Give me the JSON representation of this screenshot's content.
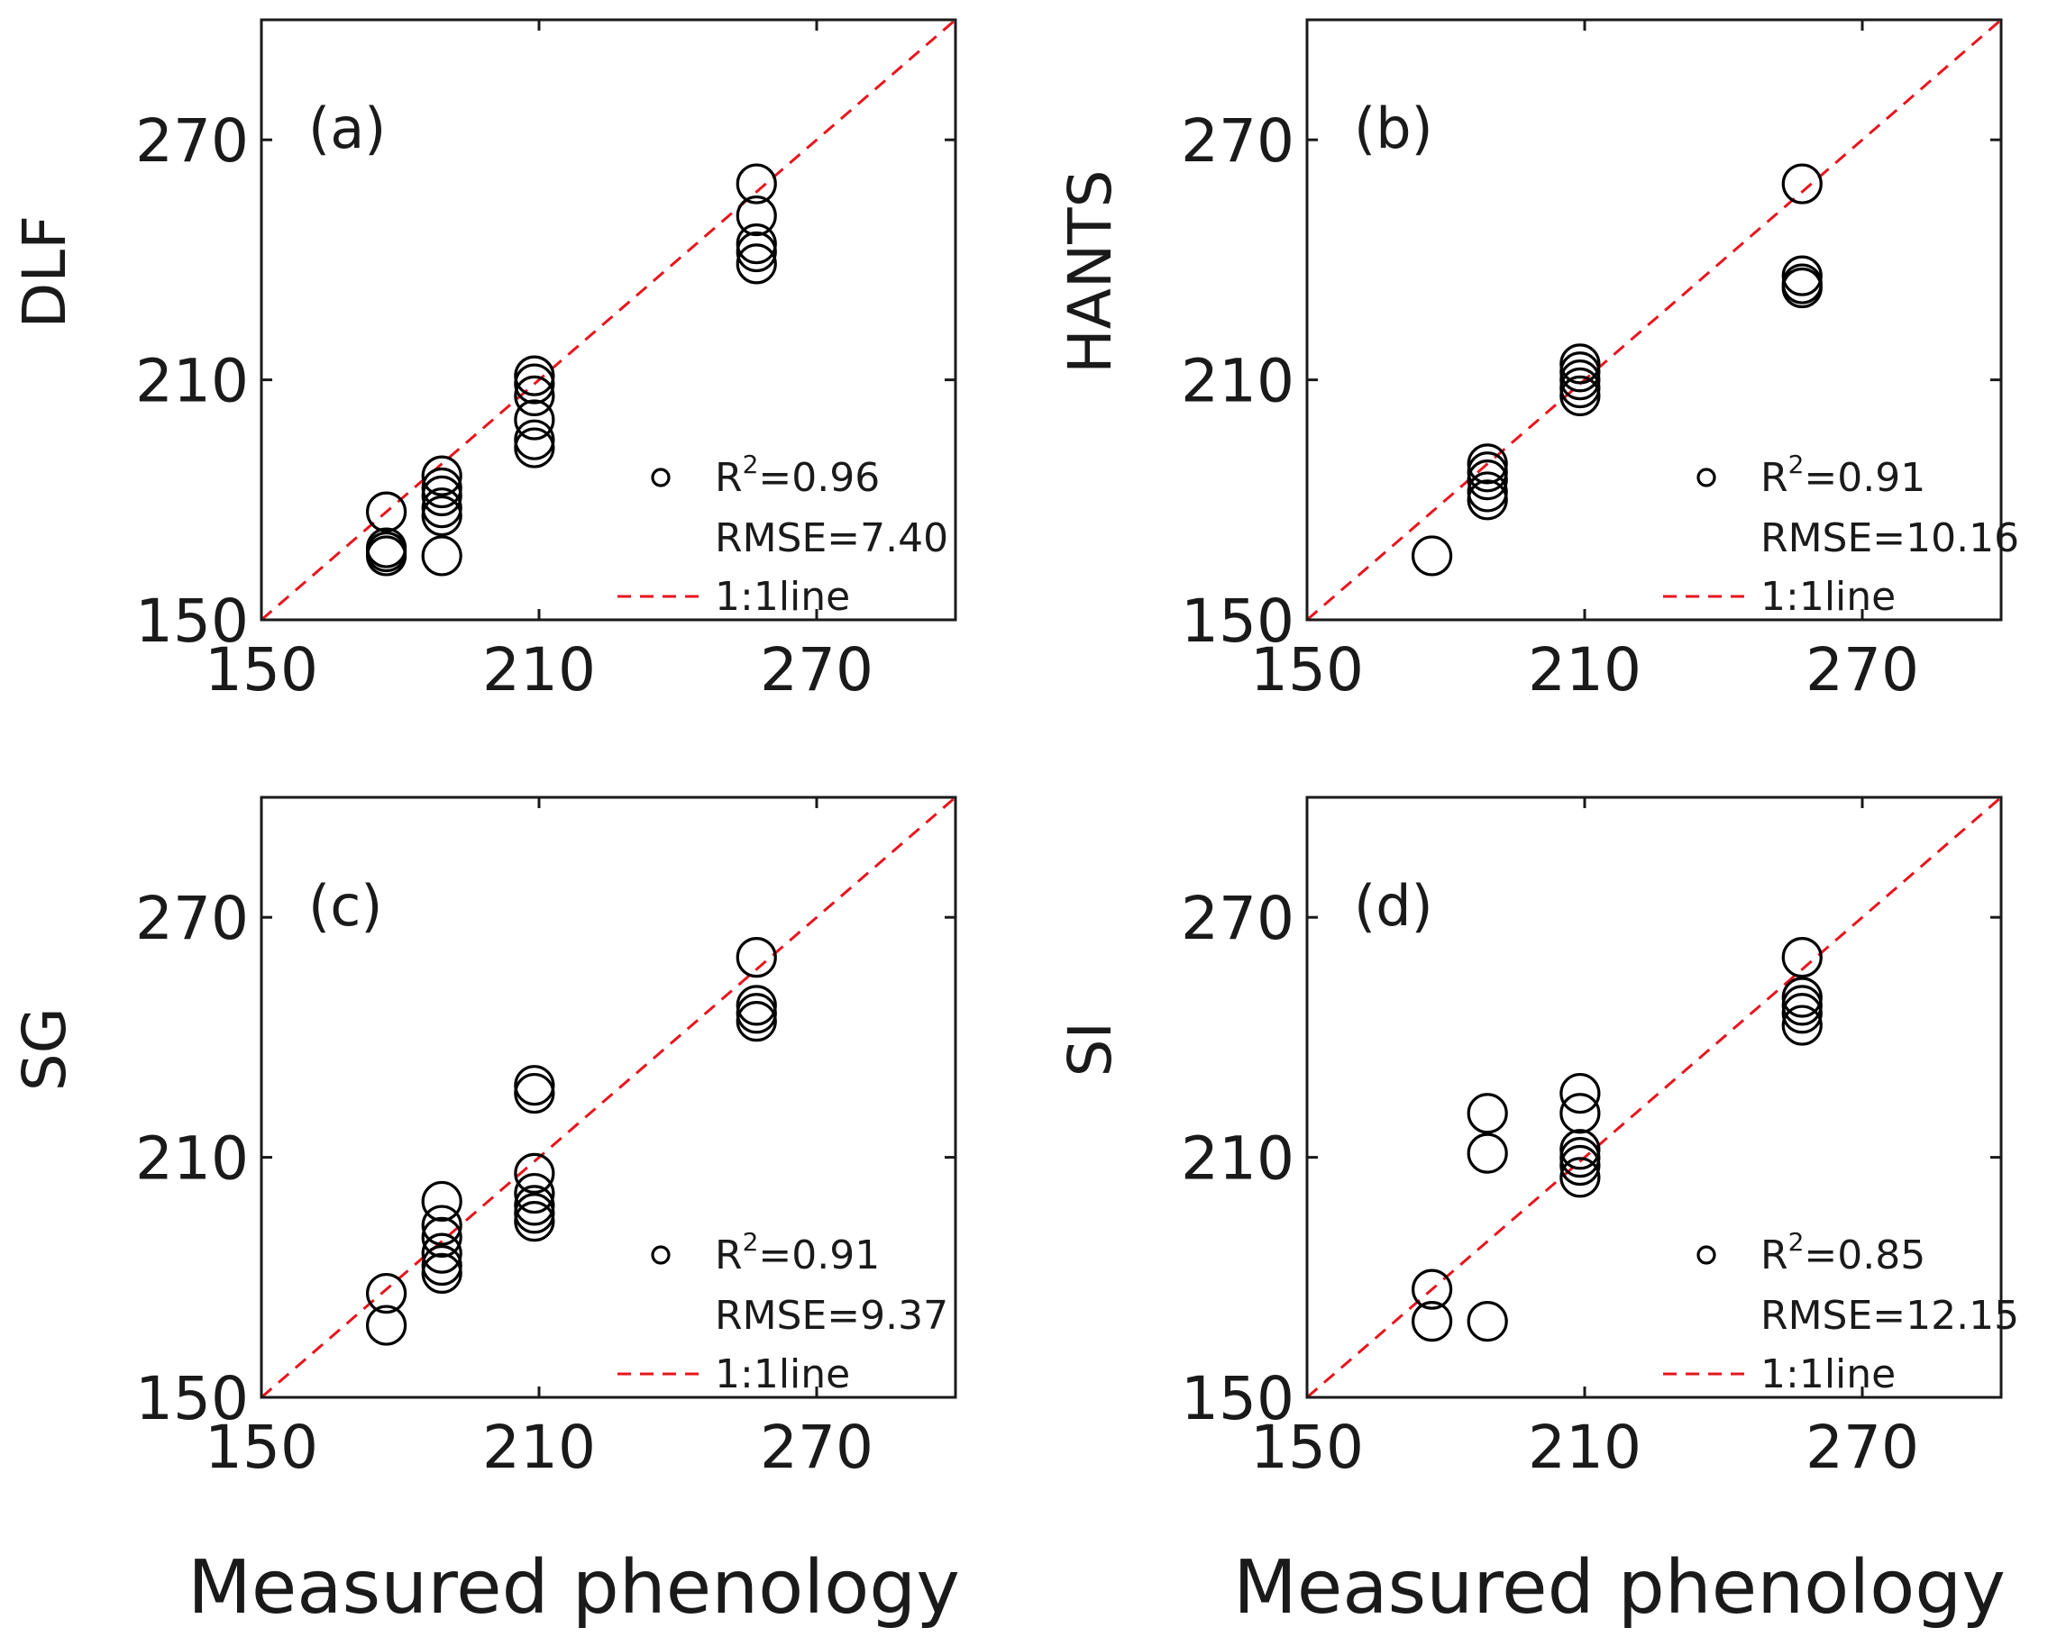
{
  "figure": {
    "xlabel": "Measured phenology"
  },
  "colors": {
    "marker": "#000000",
    "one_to_one_line": "#e8141c",
    "axes": "#1a1a1a"
  },
  "chart_data": [
    {
      "type": "scatter",
      "panel_label": "(a)",
      "ylabel": "DLF",
      "xlabel": "",
      "xlim": [
        150,
        300
      ],
      "ylim": [
        150,
        300
      ],
      "xticks": [
        "150",
        "210",
        "270"
      ],
      "yticks": [
        "150",
        "210",
        "270"
      ],
      "legend": {
        "r2_prefix": "R",
        "r2_value": "=0.96",
        "rmse": "RMSE=7.40",
        "line": "1:1line"
      },
      "points": [
        [
          177,
          177
        ],
        [
          177,
          168
        ],
        [
          177,
          167
        ],
        [
          177,
          166
        ],
        [
          189,
          186
        ],
        [
          189,
          183
        ],
        [
          189,
          181
        ],
        [
          189,
          178
        ],
        [
          189,
          176
        ],
        [
          189,
          166
        ],
        [
          209,
          211
        ],
        [
          209,
          209
        ],
        [
          209,
          206
        ],
        [
          209,
          200
        ],
        [
          209,
          195
        ],
        [
          209,
          193
        ],
        [
          257,
          259
        ],
        [
          257,
          251
        ],
        [
          257,
          244
        ],
        [
          257,
          242
        ],
        [
          257,
          239
        ]
      ]
    },
    {
      "type": "scatter",
      "panel_label": "(b)",
      "ylabel": "HANTS",
      "xlabel": "",
      "xlim": [
        150,
        300
      ],
      "ylim": [
        150,
        300
      ],
      "xticks": [
        "150",
        "210",
        "270"
      ],
      "yticks": [
        "150",
        "210",
        "270"
      ],
      "legend": {
        "r2_prefix": "R",
        "r2_value": "=0.91",
        "rmse": "RMSE=10.16",
        "line": "1:1line"
      },
      "points": [
        [
          177,
          166
        ],
        [
          189,
          189
        ],
        [
          189,
          187
        ],
        [
          189,
          185
        ],
        [
          189,
          182
        ],
        [
          189,
          180
        ],
        [
          209,
          214
        ],
        [
          209,
          212
        ],
        [
          209,
          210
        ],
        [
          209,
          208
        ],
        [
          209,
          206
        ],
        [
          257,
          259
        ],
        [
          257,
          236
        ],
        [
          257,
          234
        ],
        [
          257,
          233
        ]
      ]
    },
    {
      "type": "scatter",
      "panel_label": "(c)",
      "ylabel": "SG",
      "xlabel": "Measured phenology",
      "xlim": [
        150,
        300
      ],
      "ylim": [
        150,
        300
      ],
      "xticks": [
        "150",
        "210",
        "270"
      ],
      "yticks": [
        "150",
        "210",
        "270"
      ],
      "legend": {
        "r2_prefix": "R",
        "r2_value": "=0.91",
        "rmse": "RMSE=9.37",
        "line": "1:1line"
      },
      "points": [
        [
          177,
          176
        ],
        [
          177,
          168
        ],
        [
          189,
          199
        ],
        [
          189,
          193
        ],
        [
          189,
          190
        ],
        [
          189,
          186
        ],
        [
          189,
          183
        ],
        [
          189,
          181
        ],
        [
          209,
          228
        ],
        [
          209,
          226
        ],
        [
          209,
          206
        ],
        [
          209,
          201
        ],
        [
          209,
          198
        ],
        [
          209,
          196
        ],
        [
          209,
          194
        ],
        [
          257,
          260
        ],
        [
          257,
          248
        ],
        [
          257,
          246
        ],
        [
          257,
          244
        ]
      ]
    },
    {
      "type": "scatter",
      "panel_label": "(d)",
      "ylabel": "SI",
      "xlabel": "Measured phenology",
      "xlim": [
        150,
        300
      ],
      "ylim": [
        150,
        300
      ],
      "xticks": [
        "150",
        "210",
        "270"
      ],
      "yticks": [
        "150",
        "210",
        "270"
      ],
      "legend": {
        "r2_prefix": "R",
        "r2_value": "=0.85",
        "rmse": "RMSE=12.15",
        "line": "1:1line"
      },
      "points": [
        [
          177,
          177
        ],
        [
          177,
          169
        ],
        [
          189,
          221
        ],
        [
          189,
          211
        ],
        [
          189,
          169
        ],
        [
          209,
          226
        ],
        [
          209,
          221
        ],
        [
          209,
          212
        ],
        [
          209,
          210
        ],
        [
          209,
          208
        ],
        [
          209,
          205
        ],
        [
          257,
          260
        ],
        [
          257,
          250
        ],
        [
          257,
          248
        ],
        [
          257,
          246
        ],
        [
          257,
          243
        ]
      ]
    }
  ]
}
